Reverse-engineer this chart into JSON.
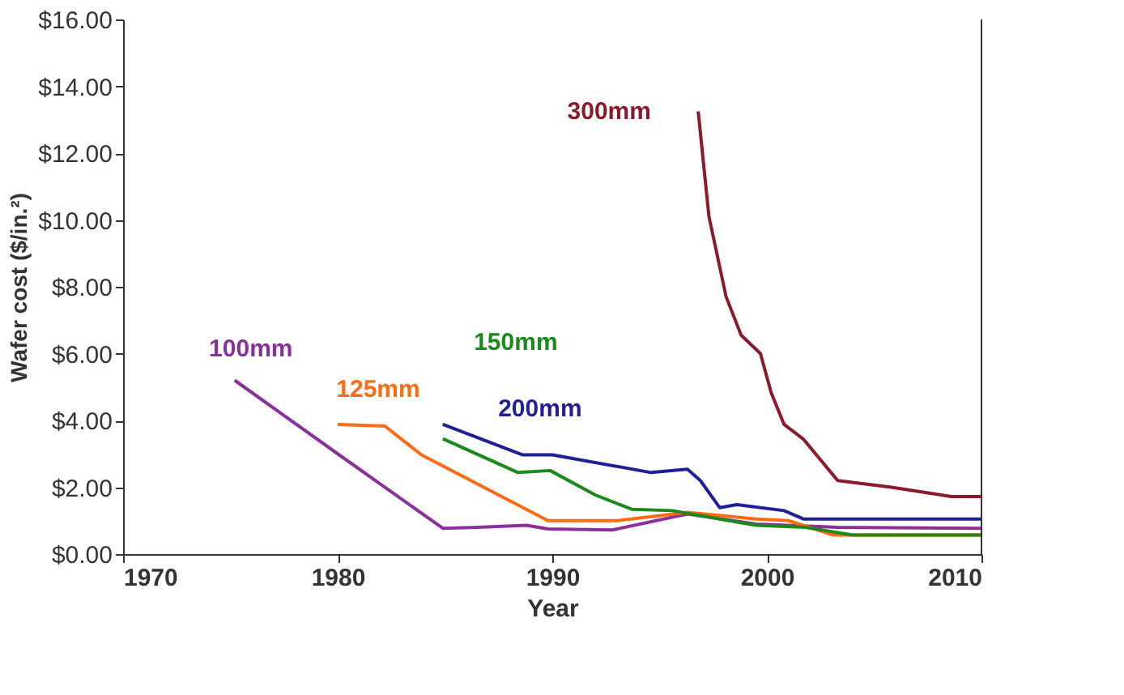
{
  "chart_data": {
    "type": "line",
    "xlabel": "Year",
    "ylabel": "Wafer cost ($/in.²)",
    "xlim": [
      1970,
      2010
    ],
    "xticks": [
      1970,
      1980,
      1990,
      2000,
      2010
    ],
    "ylim": [
      0,
      16
    ],
    "yticks": [
      {
        "value": 0,
        "label": "$0.00"
      },
      {
        "value": 2,
        "label": "$2.00"
      },
      {
        "value": 4,
        "label": "$4.00"
      },
      {
        "value": 6,
        "label": "$6.00"
      },
      {
        "value": 8,
        "label": "$8.00"
      },
      {
        "value": 10,
        "label": "$10.00"
      },
      {
        "value": 12,
        "label": "$12.00"
      },
      {
        "value": 14,
        "label": "$14.00"
      },
      {
        "value": 16,
        "label": "$16.00"
      }
    ],
    "grid": false,
    "marker": "none",
    "line_style": "solid",
    "series": [
      {
        "name": "100mm",
        "color": "#8b2f9c",
        "x": [
          1975.2,
          1980,
          1984.9,
          1986.5,
          1988.8,
          1989.8,
          1992.8,
          1996.3,
          1999.5,
          2003.3,
          2010
        ],
        "values": [
          5.2,
          3.0,
          0.77,
          0.8,
          0.86,
          0.75,
          0.72,
          1.2,
          0.9,
          0.8,
          0.77
        ]
      },
      {
        "name": "125mm",
        "color": "#ff6a13",
        "x": [
          1980,
          1982.2,
          1983.9,
          1989.8,
          1993,
          1996.3,
          1999.5,
          2001,
          2003.1,
          2010
        ],
        "values": [
          3.88,
          3.83,
          2.97,
          1.0,
          1.0,
          1.25,
          1.05,
          1.0,
          0.57,
          0.57
        ]
      },
      {
        "name": "150mm",
        "color": "#1a8a1a",
        "x": [
          1984.9,
          1988.4,
          1989.9,
          1992,
          1993.7,
          1995.6,
          1997.8,
          1999.5,
          2001.8,
          2004,
          2010
        ],
        "values": [
          3.45,
          2.44,
          2.5,
          1.77,
          1.34,
          1.3,
          1.05,
          0.86,
          0.8,
          0.57,
          0.57
        ]
      },
      {
        "name": "200mm",
        "color": "#1f1f99",
        "x": [
          1984.9,
          1988.6,
          1990,
          1994.6,
          1996.3,
          1996.9,
          1997.8,
          1998.6,
          2000.8,
          2001.7,
          2010
        ],
        "values": [
          3.88,
          2.97,
          2.97,
          2.44,
          2.54,
          2.2,
          1.39,
          1.48,
          1.3,
          1.05,
          1.05
        ]
      },
      {
        "name": "300mm",
        "color": "#8b1a2a",
        "x": [
          1996.8,
          1997.3,
          1998.1,
          1998.8,
          1999.7,
          2000.2,
          2000.8,
          2001.7,
          2003.3,
          2005.8,
          2008.6,
          2010
        ],
        "values": [
          13.25,
          10.1,
          7.7,
          6.55,
          6.0,
          4.83,
          3.88,
          3.44,
          2.2,
          2.0,
          1.72,
          1.72
        ]
      }
    ]
  }
}
